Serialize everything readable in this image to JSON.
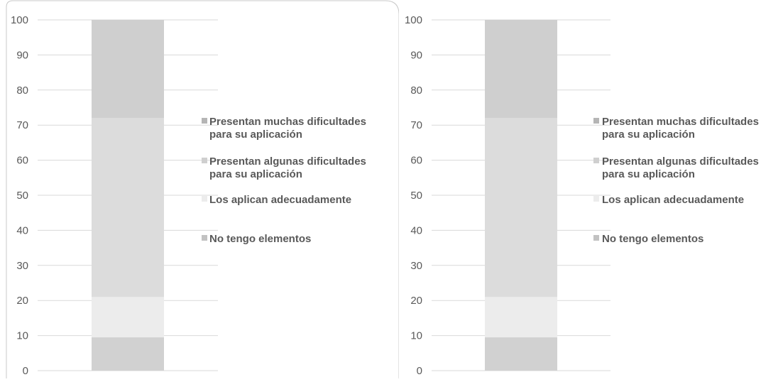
{
  "colors": {
    "background": "#ffffff",
    "gridline": "#d9d9d9",
    "text": "#595959",
    "frame": "#c8c8c8"
  },
  "chart_data": [
    {
      "type": "bar",
      "stacked": true,
      "title": "",
      "xlabel": "",
      "ylabel": "",
      "ylim": [
        0,
        100
      ],
      "yticks": [
        0,
        10,
        20,
        30,
        40,
        50,
        60,
        70,
        80,
        90,
        100
      ],
      "grid": true,
      "legend_position": "right",
      "categories": [
        ""
      ],
      "series": [
        {
          "name": "No tengo elementos",
          "values": [
            9.5
          ],
          "color": "#d1d1d1"
        },
        {
          "name": "Los aplican adecuadamente",
          "values": [
            11.5
          ],
          "color": "#ececec"
        },
        {
          "name": "Presentan algunas dificultades para su aplicación",
          "values": [
            51
          ],
          "color": "#dcdcdc"
        },
        {
          "name": "Presentan muchas dificultades para su aplicación",
          "values": [
            28
          ],
          "color": "#cfcfcf"
        }
      ],
      "legend": [
        {
          "lines": [
            "Presentan muchas dificultades",
            "para su aplicación"
          ],
          "color": "#b5b5b5"
        },
        {
          "lines": [
            "Presentan algunas dificultades",
            "para su aplicación"
          ],
          "color": "#cfcfcf"
        },
        {
          "lines": [
            "Los aplican adecuadamente"
          ],
          "color": "#ececec"
        },
        {
          "lines": [
            "No tengo elementos"
          ],
          "color": "#c2c2c2"
        }
      ]
    },
    {
      "type": "bar",
      "stacked": true,
      "title": "",
      "xlabel": "",
      "ylabel": "",
      "ylim": [
        0,
        100
      ],
      "yticks": [
        0,
        10,
        20,
        30,
        40,
        50,
        60,
        70,
        80,
        90,
        100
      ],
      "grid": true,
      "legend_position": "right",
      "categories": [
        ""
      ],
      "series": [
        {
          "name": "No tengo elementos",
          "values": [
            9.5
          ],
          "color": "#d1d1d1"
        },
        {
          "name": "Los aplican adecuadamente",
          "values": [
            11.5
          ],
          "color": "#ececec"
        },
        {
          "name": "Presentan algunas dificultades para su aplicación",
          "values": [
            51
          ],
          "color": "#dcdcdc"
        },
        {
          "name": "Presentan muchas dificultades para su aplicación",
          "values": [
            28
          ],
          "color": "#cfcfcf"
        }
      ],
      "legend": [
        {
          "lines": [
            "Presentan muchas dificultades",
            "para su aplicación"
          ],
          "color": "#b5b5b5"
        },
        {
          "lines": [
            "Presentan algunas dificultades",
            "para su aplicación"
          ],
          "color": "#cfcfcf"
        },
        {
          "lines": [
            "Los aplican adecuadamente"
          ],
          "color": "#ececec"
        },
        {
          "lines": [
            "No tengo elementos"
          ],
          "color": "#c2c2c2"
        }
      ]
    }
  ]
}
